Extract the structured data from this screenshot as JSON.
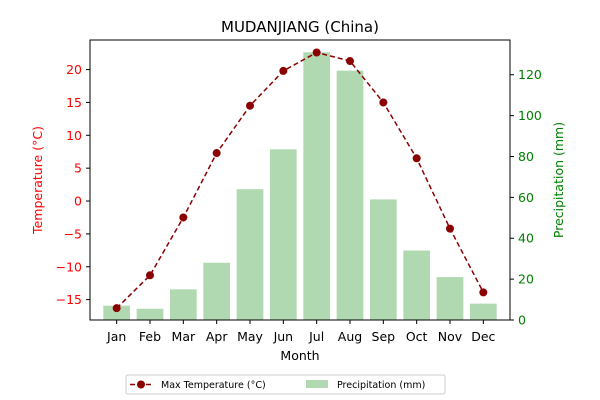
{
  "chart_data": {
    "type": "bar+line",
    "title": "MUDANJIANG (China)",
    "xlabel": "Month",
    "y_left_label": "Temperature (°C)",
    "y_right_label": "Precipitation (mm)",
    "categories": [
      "Jan",
      "Feb",
      "Mar",
      "Apr",
      "May",
      "Jun",
      "Jul",
      "Aug",
      "Sep",
      "Oct",
      "Nov",
      "Dec"
    ],
    "y_left_lim": [
      -18.1,
      24.5
    ],
    "y_left_ticks": [
      -15,
      -10,
      -5,
      0,
      5,
      10,
      15,
      20
    ],
    "y_left_tick_labels": [
      "−15",
      "−10",
      "−5",
      "0",
      "5",
      "10",
      "15",
      "20"
    ],
    "y_right_lim": [
      0,
      137
    ],
    "y_right_ticks": [
      0,
      20,
      40,
      60,
      80,
      100,
      120
    ],
    "y_right_tick_labels": [
      "0",
      "20",
      "40",
      "60",
      "80",
      "100",
      "120"
    ],
    "grid": false,
    "legend_position": "bottom-center",
    "series": [
      {
        "name": "Max Temperature (°C)",
        "type": "line",
        "axis": "left",
        "color": "#8b0000",
        "style": "dashed",
        "marker": "circle",
        "values": [
          -16.3,
          -11.3,
          -2.5,
          7.3,
          14.5,
          19.8,
          22.6,
          21.3,
          15.0,
          6.5,
          -4.2,
          -13.9
        ]
      },
      {
        "name": "Precipitation (mm)",
        "type": "bar",
        "axis": "right",
        "color": "#b0d8b1",
        "values": [
          7,
          5.5,
          15,
          28,
          64,
          83.5,
          131,
          122,
          59,
          34,
          21,
          8
        ]
      }
    ],
    "colors": {
      "left_axis": "#ff0000",
      "right_axis": "#008000"
    }
  }
}
